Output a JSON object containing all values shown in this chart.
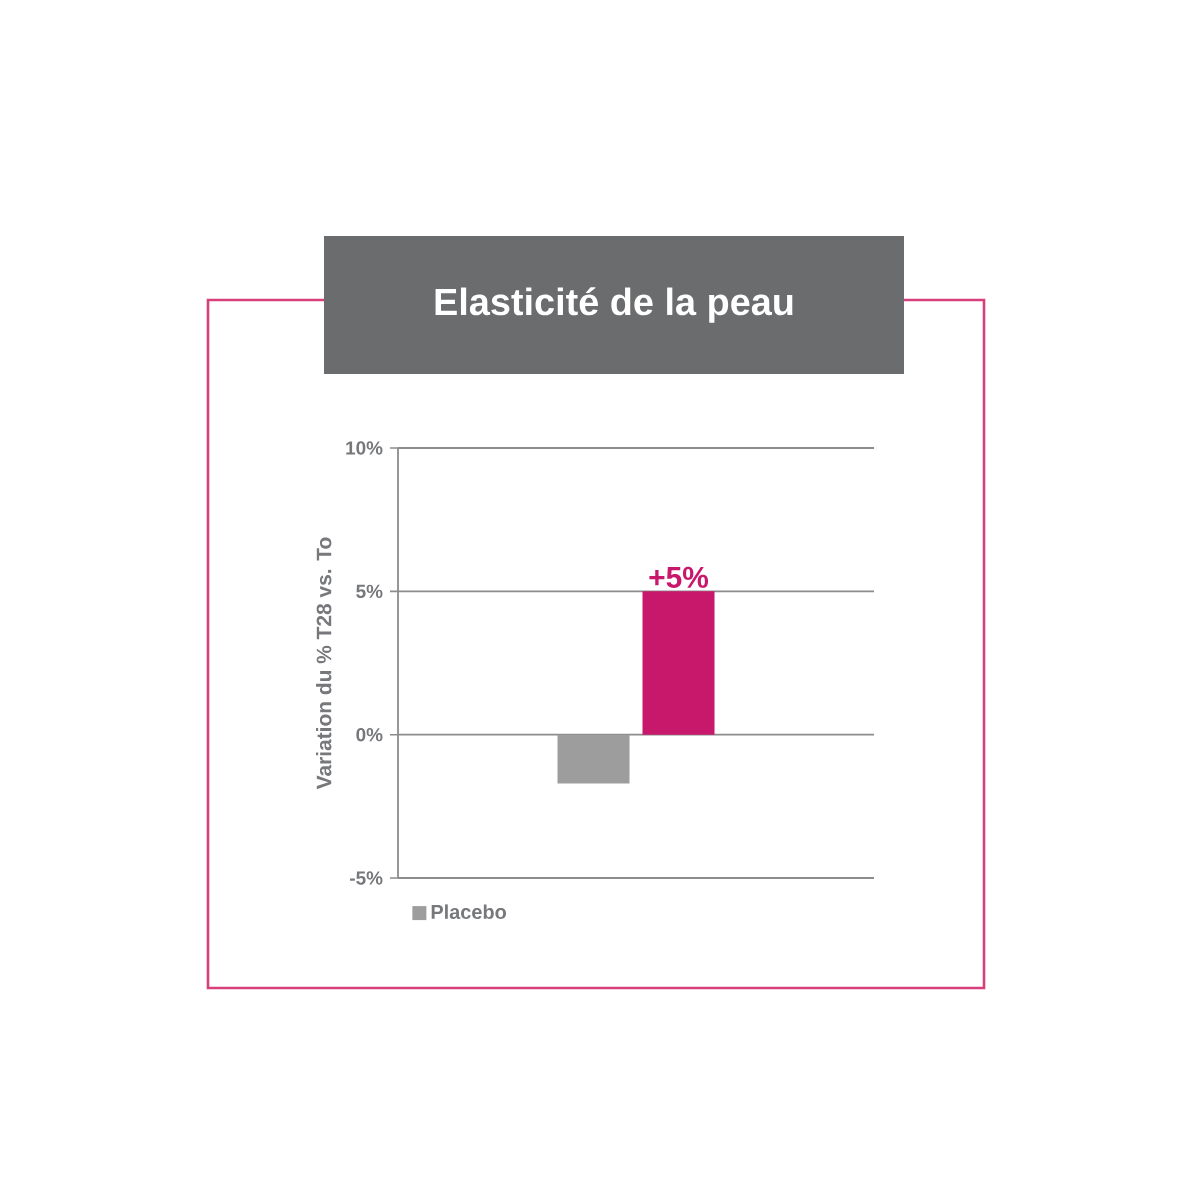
{
  "chart_data": {
    "type": "bar",
    "title": "Elasticité de la peau",
    "ylabel": "Variation du % T28 vs. To",
    "categories": [
      null
    ],
    "series": [
      {
        "name": "Placebo",
        "color": "#9d9d9d",
        "values": [
          -1.7
        ]
      },
      {
        "color": "#c8186c",
        "values": [
          5
        ],
        "value_labels": [
          "+5%"
        ]
      }
    ],
    "ylim": [
      -5,
      10
    ],
    "yticks": [
      {
        "value": -5,
        "label": "-5%"
      },
      {
        "value": 0,
        "label": "0%"
      },
      {
        "value": 5,
        "label": "5%"
      },
      {
        "value": 10,
        "label": "10%"
      }
    ],
    "grid": "y",
    "legend": "bottom"
  }
}
